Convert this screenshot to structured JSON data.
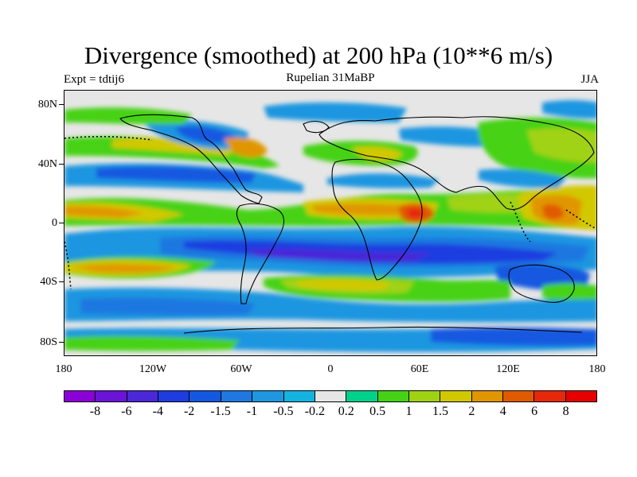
{
  "title": "Divergence (smoothed) at 200 hPa (10**6 m/s)",
  "subtitle": "Rupelian 31MaBP",
  "expt_label": "Expt = tdtij6",
  "season": "JJA",
  "y_axis_labels": [
    "80N",
    "40N",
    "0",
    "40S",
    "80S"
  ],
  "x_axis_labels": [
    "180",
    "120W",
    "60W",
    "0",
    "60E",
    "120E",
    "180"
  ],
  "colorbar": {
    "colors": [
      "#8c00d8",
      "#6a14d8",
      "#4a28d8",
      "#1e3ce0",
      "#1458e0",
      "#1e78e0",
      "#1e96e0",
      "#14b4e0",
      "#e6e6e6",
      "#00d28c",
      "#46d214",
      "#a0d214",
      "#d2c800",
      "#e09600",
      "#e05a00",
      "#e6280a",
      "#e60000"
    ],
    "labels": [
      "-8",
      "-6",
      "-4",
      "-2",
      "-1.5",
      "-1",
      "-0.5",
      "-0.2",
      "0.2",
      "0.5",
      "1",
      "1.5",
      "2",
      "4",
      "6",
      "8"
    ]
  },
  "chart_data": {
    "type": "heatmap",
    "title": "Divergence (smoothed) at 200 hPa (10**6 m/s)",
    "subtitle": "Rupelian 31MaBP",
    "x_range": [
      -180,
      180
    ],
    "y_range": [
      -90,
      90
    ],
    "levels": [
      -8,
      -6,
      -4,
      -2,
      -1.5,
      -1,
      -0.5,
      -0.2,
      0.2,
      0.5,
      1,
      1.5,
      2,
      4,
      6,
      8
    ]
  }
}
